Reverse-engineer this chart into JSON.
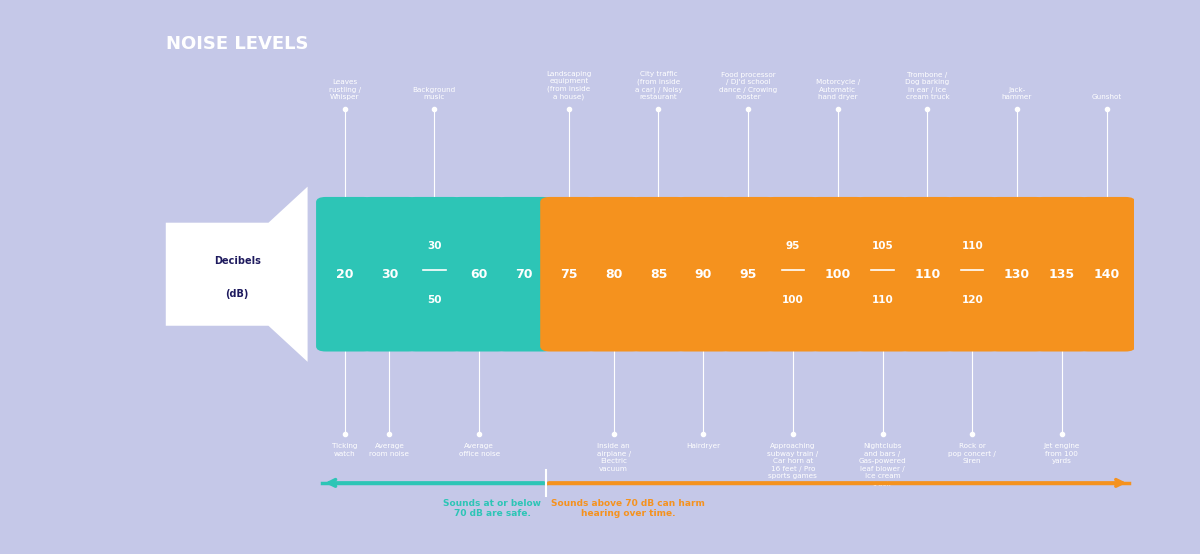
{
  "title": "NOISE LEVELS",
  "bg_color": "#1e1a5e",
  "outer_bg": "#c5c8e8",
  "chart_bg": "#1e1a5e",
  "teal_color": "#2dc5b6",
  "orange_color": "#f5921e",
  "bars": [
    {
      "label": "20",
      "color": "teal",
      "top_text": "Leaves\nrustling /\nWhisper",
      "bot_text": "Ticking\nwatch"
    },
    {
      "label": "30",
      "color": "teal",
      "top_text": "",
      "bot_text": "Average\nroom noise"
    },
    {
      "label": "30\n50",
      "color": "teal",
      "top_text": "Background\nmusic",
      "bot_text": ""
    },
    {
      "label": "60",
      "color": "teal",
      "top_text": "",
      "bot_text": "Average\noffice noise"
    },
    {
      "label": "70",
      "color": "teal",
      "top_text": "",
      "bot_text": ""
    },
    {
      "label": "75",
      "color": "orange",
      "top_text": "Landscaping\nequipment\n(from inside\na house)",
      "bot_text": ""
    },
    {
      "label": "80",
      "color": "orange",
      "top_text": "",
      "bot_text": "Inside an\nairplane /\nElectric\nvacuum"
    },
    {
      "label": "85",
      "color": "orange",
      "top_text": "City traffic\n(from inside\na car) / Noisy\nrestaurant",
      "bot_text": ""
    },
    {
      "label": "90",
      "color": "orange",
      "top_text": "",
      "bot_text": "Hairdryer"
    },
    {
      "label": "95",
      "color": "orange",
      "top_text": "Food processor\n/ DJ'd school\ndance / Crowing\nrooster",
      "bot_text": ""
    },
    {
      "label": "95\n100",
      "color": "orange",
      "top_text": "",
      "bot_text": "Approaching\nsubway train /\nCar horn at\n16 feet / Pro\nsports games"
    },
    {
      "label": "100",
      "color": "orange",
      "top_text": "Motorcycle /\nAutomatic\nhand dryer",
      "bot_text": ""
    },
    {
      "label": "105\n110",
      "color": "orange",
      "top_text": "",
      "bot_text": "Nightclubs\nand bars /\nGas-powered\nleaf blower /\nIce cream\ntruck"
    },
    {
      "label": "110",
      "color": "orange",
      "top_text": "Trombone /\nDog barking\nin ear / Ice\ncream truck",
      "bot_text": ""
    },
    {
      "label": "110\n120",
      "color": "orange",
      "top_text": "",
      "bot_text": "Rock or\npop concert /\nSiren"
    },
    {
      "label": "130",
      "color": "orange",
      "top_text": "Jack-\nhammer",
      "bot_text": ""
    },
    {
      "label": "135",
      "color": "orange",
      "top_text": "",
      "bot_text": "Jet engine\nfrom 100\nyards"
    },
    {
      "label": "140",
      "color": "orange",
      "top_text": "Gunshot",
      "bot_text": ""
    }
  ],
  "bottom_left_text": "Sounds at or below\n70 dB are safe.",
  "bottom_right_text": "Sounds above 70 dB can harm\nhearing over time."
}
